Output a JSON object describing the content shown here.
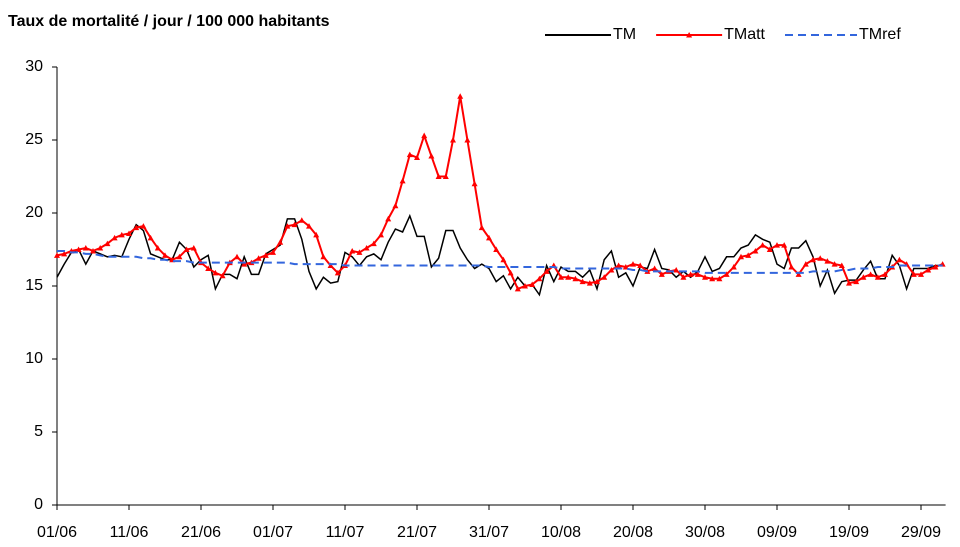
{
  "chart_data": {
    "type": "line",
    "title": "Taux de mortalité / jour / 100 000 habitants",
    "categories": [
      "01/06",
      null,
      null,
      null,
      null,
      null,
      null,
      null,
      null,
      null,
      "11/06",
      null,
      null,
      null,
      null,
      null,
      null,
      null,
      null,
      null,
      "21/06",
      null,
      null,
      null,
      null,
      null,
      null,
      null,
      null,
      null,
      "01/07",
      null,
      null,
      null,
      null,
      null,
      null,
      null,
      null,
      null,
      "11/07",
      null,
      null,
      null,
      null,
      null,
      null,
      null,
      null,
      null,
      "21/07",
      null,
      null,
      null,
      null,
      null,
      null,
      null,
      null,
      null,
      "31/07",
      null,
      null,
      null,
      null,
      null,
      null,
      null,
      null,
      null,
      "10/08",
      null,
      null,
      null,
      null,
      null,
      null,
      null,
      null,
      null,
      "20/08",
      null,
      null,
      null,
      null,
      null,
      null,
      null,
      null,
      null,
      "30/08",
      null,
      null,
      null,
      null,
      null,
      null,
      null,
      null,
      null,
      "09/09",
      null,
      null,
      null,
      null,
      null,
      null,
      null,
      null,
      null,
      "19/09",
      null,
      null,
      null,
      null,
      null,
      null,
      null,
      null,
      null,
      "29/09",
      null,
      null,
      null
    ],
    "series": [
      {
        "name": "TM",
        "color": "#000000",
        "values": [
          15.6,
          16.5,
          17.3,
          17.5,
          16.5,
          17.4,
          17.2,
          17.0,
          17.1,
          17.0,
          18.2,
          19.2,
          18.8,
          17.2,
          17.0,
          16.8,
          16.8,
          18.0,
          17.5,
          16.3,
          16.8,
          17.1,
          14.8,
          15.8,
          15.8,
          15.5,
          17.0,
          15.8,
          15.8,
          17.2,
          17.5,
          17.8,
          19.6,
          19.6,
          18.2,
          16.0,
          14.8,
          15.6,
          15.2,
          15.3,
          17.3,
          17.0,
          16.4,
          17.0,
          17.2,
          16.8,
          18.0,
          18.9,
          18.7,
          19.8,
          18.4,
          18.4,
          16.3,
          16.9,
          18.8,
          18.8,
          17.6,
          16.8,
          16.2,
          16.5,
          16.2,
          15.3,
          15.7,
          14.8,
          15.6,
          15.0,
          15.1,
          14.4,
          16.4,
          15.3,
          16.3,
          16.0,
          16.0,
          15.6,
          16.1,
          14.8,
          16.8,
          17.4,
          15.6,
          15.9,
          15.0,
          16.3,
          16.2,
          17.5,
          16.2,
          16.1,
          15.6,
          16.0,
          15.6,
          16.0,
          17.0,
          16.0,
          16.2,
          17.0,
          17.0,
          17.6,
          17.8,
          18.5,
          18.2,
          18.0,
          16.5,
          16.2,
          17.6,
          17.6,
          18.1,
          17.0,
          15.0,
          16.1,
          14.5,
          15.3,
          15.4,
          15.4,
          16.1,
          16.7,
          15.5,
          15.5,
          17.1,
          16.4,
          14.8,
          16.2,
          16.2,
          16.2,
          16.4,
          16.4
        ]
      },
      {
        "name": "TMatt",
        "color": "#ff0000",
        "marker": "triangle",
        "values": [
          17.1,
          17.2,
          17.4,
          17.5,
          17.6,
          17.4,
          17.6,
          17.9,
          18.3,
          18.5,
          18.6,
          19.0,
          19.1,
          18.3,
          17.6,
          17.1,
          16.8,
          17.0,
          17.5,
          17.6,
          16.6,
          16.2,
          15.9,
          15.7,
          16.6,
          17.0,
          16.5,
          16.6,
          16.9,
          17.1,
          17.3,
          18.0,
          19.1,
          19.2,
          19.5,
          19.1,
          18.5,
          17.0,
          16.4,
          15.9,
          16.4,
          17.4,
          17.3,
          17.6,
          17.9,
          18.5,
          19.6,
          20.5,
          22.2,
          24.0,
          23.8,
          25.3,
          23.9,
          22.5,
          22.5,
          25.0,
          28.0,
          25.0,
          22.0,
          19.0,
          18.3,
          17.5,
          16.8,
          15.9,
          14.8,
          15.0,
          15.1,
          15.5,
          16.0,
          16.4,
          15.6,
          15.6,
          15.5,
          15.3,
          15.2,
          15.3,
          15.6,
          16.1,
          16.4,
          16.3,
          16.5,
          16.4,
          16.0,
          16.2,
          15.8,
          16.0,
          16.1,
          15.6,
          15.8,
          15.8,
          15.6,
          15.5,
          15.5,
          15.8,
          16.3,
          17.0,
          17.1,
          17.4,
          17.8,
          17.5,
          17.8,
          17.8,
          16.3,
          15.8,
          16.5,
          16.8,
          16.9,
          16.7,
          16.5,
          16.4,
          15.2,
          15.3,
          15.6,
          15.8,
          15.6,
          15.8,
          16.3,
          16.8,
          16.5,
          15.8,
          15.8,
          16.1,
          16.3,
          16.5
        ]
      },
      {
        "name": "TMref",
        "color": "#3366dd",
        "dash": true,
        "values": [
          17.4,
          17.4,
          17.3,
          17.3,
          17.2,
          17.2,
          17.1,
          17.0,
          17.0,
          17.0,
          17.0,
          17.0,
          16.9,
          16.9,
          16.8,
          16.8,
          16.7,
          16.7,
          16.7,
          16.6,
          16.6,
          16.6,
          16.6,
          16.6,
          16.6,
          16.6,
          16.6,
          16.6,
          16.6,
          16.6,
          16.6,
          16.6,
          16.6,
          16.5,
          16.5,
          16.5,
          16.5,
          16.5,
          16.5,
          16.5,
          16.4,
          16.4,
          16.4,
          16.4,
          16.4,
          16.4,
          16.4,
          16.4,
          16.4,
          16.4,
          16.4,
          16.4,
          16.4,
          16.4,
          16.4,
          16.4,
          16.4,
          16.4,
          16.4,
          16.4,
          16.3,
          16.3,
          16.3,
          16.3,
          16.3,
          16.3,
          16.3,
          16.3,
          16.3,
          16.3,
          16.2,
          16.2,
          16.2,
          16.2,
          16.2,
          16.2,
          16.2,
          16.2,
          16.2,
          16.2,
          16.1,
          16.1,
          16.0,
          16.0,
          16.0,
          16.0,
          16.0,
          16.0,
          16.0,
          16.0,
          15.9,
          15.9,
          15.9,
          15.9,
          15.9,
          15.9,
          15.9,
          15.9,
          15.9,
          15.9,
          15.9,
          15.9,
          15.9,
          15.9,
          15.9,
          16.0,
          16.0,
          16.0,
          16.0,
          16.1,
          16.1,
          16.2,
          16.2,
          16.2,
          16.3,
          16.3,
          16.3,
          16.4,
          16.4,
          16.4,
          16.4,
          16.4,
          16.4,
          16.4
        ]
      }
    ],
    "ylim": [
      0,
      30
    ],
    "yticks": [
      0,
      5,
      10,
      15,
      20,
      25,
      30
    ],
    "grid": false,
    "legend": "top-right"
  }
}
